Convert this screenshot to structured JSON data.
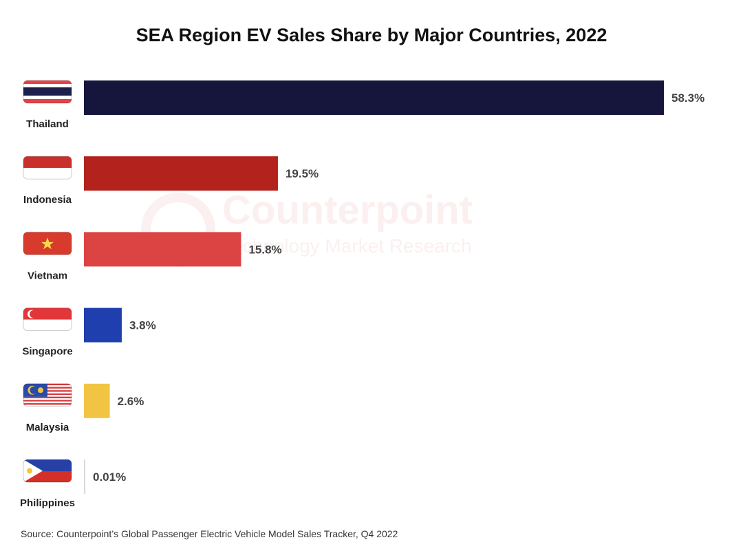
{
  "chart_data": {
    "type": "bar",
    "orientation": "horizontal",
    "title": "SEA Region EV Sales Share by Major Countries, 2022",
    "categories": [
      "Thailand",
      "Indonesia",
      "Vietnam",
      "Singapore",
      "Malaysia",
      "Philippines"
    ],
    "values": [
      58.3,
      19.5,
      15.8,
      3.8,
      2.6,
      0.01
    ],
    "labels": [
      "58.3%",
      "19.5%",
      "15.8%",
      "3.8%",
      "2.6%",
      "0.01%"
    ],
    "colors": [
      "#16163d",
      "#b3221c",
      "#dc4343",
      "#1f3fae",
      "#f2c443",
      "#cccccc"
    ],
    "xlabel": "",
    "ylabel": "",
    "xlim": [
      0,
      58.3
    ],
    "grid": false,
    "legend": "none",
    "source": "Source: Counterpoint’s Global Passenger Electric Vehicle Model Sales Tracker, Q4 2022"
  },
  "watermark": {
    "line1": "Counterpoint",
    "line2": "Technology Market Research"
  }
}
